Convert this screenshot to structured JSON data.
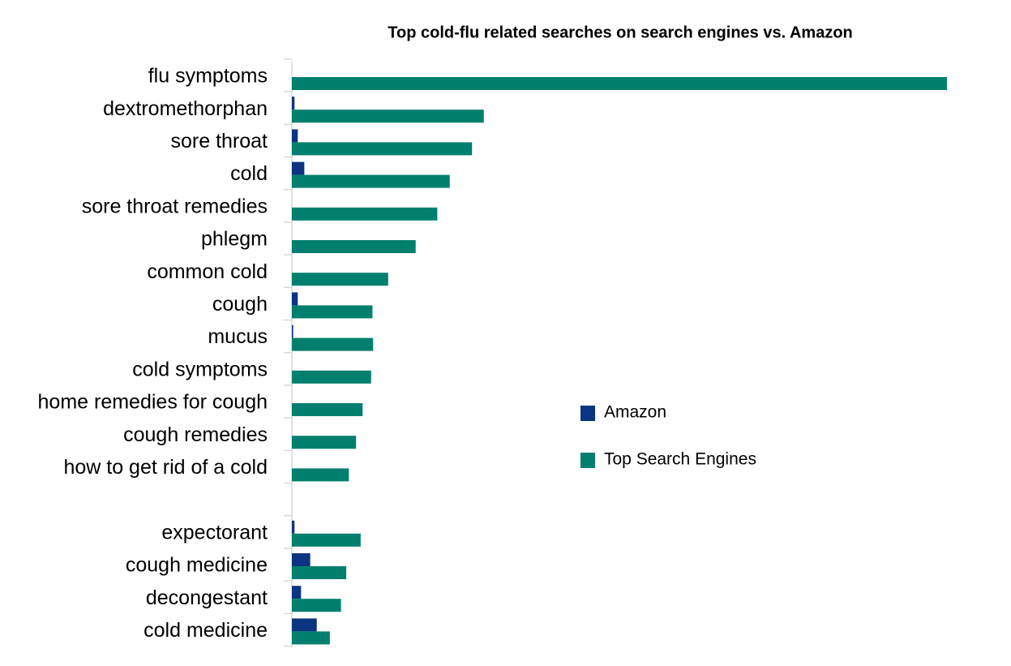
{
  "chart_data": {
    "type": "bar",
    "orientation": "horizontal",
    "title": "Top cold-flu related searches on search engines vs. Amazon",
    "categories": [
      "flu symptoms",
      "dextromethorphan",
      "sore throat",
      "cold",
      "sore throat remedies",
      "phlegm",
      "common cold",
      "cough",
      "mucus",
      "cold symptoms",
      "home remedies for cough",
      "cough remedies",
      "how to get rid of a cold",
      null,
      "expectorant",
      "cough medicine",
      "decongestant",
      "cold medicine"
    ],
    "series": [
      {
        "name": "Amazon",
        "color": "#0b3580",
        "values": [
          0,
          0.4,
          0.9,
          1.9,
          0,
          0,
          0,
          0.9,
          0.2,
          0,
          0,
          0,
          0,
          null,
          0.4,
          2.8,
          1.4,
          3.8
        ]
      },
      {
        "name": "Top Search Engines",
        "color": "#007f6e",
        "values": [
          100,
          29.3,
          27.5,
          24.1,
          22.2,
          18.9,
          14.7,
          12.3,
          12.4,
          12.1,
          10.8,
          9.8,
          8.7,
          null,
          10.5,
          8.3,
          7.5,
          5.8
        ]
      }
    ],
    "xlim": [
      0,
      100
    ]
  }
}
